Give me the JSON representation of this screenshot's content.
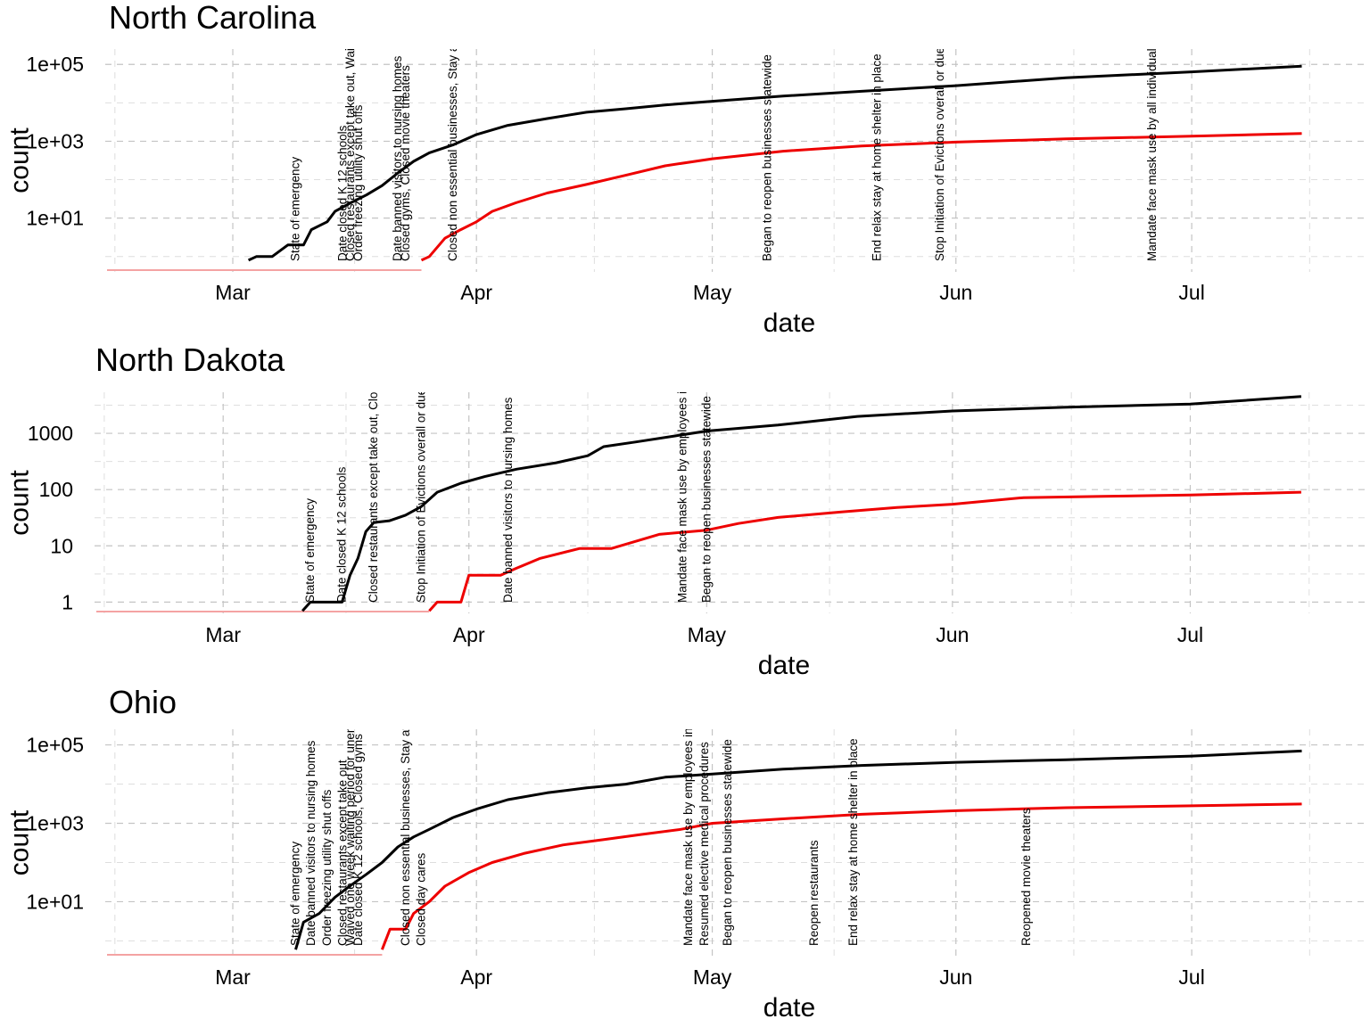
{
  "colors": {
    "cases": "#000000",
    "deaths": "#ee0000",
    "floor": "#f4a3a3",
    "grid": "#c4c4c4"
  },
  "chart_data": [
    {
      "type": "line",
      "title": "North Carolina",
      "xlabel": "date",
      "ylabel": "count",
      "y_scale": "log10",
      "xlim": [
        "2020-02-14",
        "2020-07-23"
      ],
      "ylim_log10": [
        -0.4,
        5.4
      ],
      "y_ticks": [
        {
          "value": 10,
          "label": "1e+01"
        },
        {
          "value": 1000,
          "label": "1e+03"
        },
        {
          "value": 100000,
          "label": "1e+05"
        }
      ],
      "x_ticks": [
        {
          "date": "2020-03-01",
          "label": "Mar"
        },
        {
          "date": "2020-04-01",
          "label": "Apr"
        },
        {
          "date": "2020-05-01",
          "label": "May"
        },
        {
          "date": "2020-06-01",
          "label": "Jun"
        },
        {
          "date": "2020-07-01",
          "label": "Jul"
        }
      ],
      "series": [
        {
          "key": "cases",
          "x": [
            "2020-03-03",
            "2020-03-04",
            "2020-03-06",
            "2020-03-08",
            "2020-03-10",
            "2020-03-11",
            "2020-03-13",
            "2020-03-14",
            "2020-03-16",
            "2020-03-18",
            "2020-03-20",
            "2020-03-22",
            "2020-03-24",
            "2020-03-26",
            "2020-03-29",
            "2020-04-01",
            "2020-04-05",
            "2020-04-10",
            "2020-04-15",
            "2020-04-20",
            "2020-04-25",
            "2020-05-01",
            "2020-05-10",
            "2020-05-20",
            "2020-06-01",
            "2020-06-15",
            "2020-07-01",
            "2020-07-15"
          ],
          "y": [
            0.8,
            1,
            1,
            2,
            2,
            5,
            8,
            15,
            25,
            40,
            70,
            150,
            300,
            500,
            800,
            1500,
            2600,
            3900,
            5700,
            7000,
            8800,
            11000,
            15000,
            20000,
            28000,
            45000,
            64000,
            90000
          ]
        },
        {
          "key": "deaths",
          "x": [
            "2020-03-25",
            "2020-03-26",
            "2020-03-28",
            "2020-03-30",
            "2020-04-01",
            "2020-04-03",
            "2020-04-06",
            "2020-04-10",
            "2020-04-15",
            "2020-04-20",
            "2020-04-25",
            "2020-05-01",
            "2020-05-10",
            "2020-05-20",
            "2020-06-01",
            "2020-06-15",
            "2020-07-01",
            "2020-07-15"
          ],
          "y": [
            0.8,
            1,
            3,
            5,
            8,
            15,
            25,
            45,
            75,
            130,
            230,
            350,
            550,
            750,
            950,
            1150,
            1350,
            1600
          ]
        }
      ],
      "floor_start": "2020-02-14",
      "floor_end_date": "2020-03-25",
      "annotations": [
        {
          "date": "2020-03-09",
          "text": "State of emergency"
        },
        {
          "date": "2020-03-15",
          "text": "Date closed K 12 schools"
        },
        {
          "date": "2020-03-16",
          "text": "Closed restaurants except take out, Waived one week waiting period for unemployment insurance"
        },
        {
          "date": "2020-03-17",
          "text": "Order freezing utility shut offs"
        },
        {
          "date": "2020-03-22",
          "text": "Date banned visitors to nursing homes"
        },
        {
          "date": "2020-03-23",
          "text": "Closed gyms, Closed movie theaters"
        },
        {
          "date": "2020-03-29",
          "text": "Closed non essential businesses, Stay at home/ shelter in place"
        },
        {
          "date": "2020-05-08",
          "text": "Began to reopen businesses statewide"
        },
        {
          "date": "2020-05-22",
          "text": "End relax stay at home shelter in place"
        },
        {
          "date": "2020-05-30",
          "text": "Stop Initiation of Evictions overall or due to COVID related issues"
        },
        {
          "date": "2020-06-26",
          "text": "Mandate face mask use by all individuals in public spaces"
        }
      ]
    },
    {
      "type": "line",
      "title": "North Dakota",
      "xlabel": "date",
      "ylabel": "count",
      "y_scale": "log10",
      "xlim": [
        "2020-02-14",
        "2020-07-23"
      ],
      "ylim_log10": [
        -0.2,
        3.73
      ],
      "y_ticks": [
        {
          "value": 1,
          "label": "1"
        },
        {
          "value": 10,
          "label": "10"
        },
        {
          "value": 100,
          "label": "100"
        },
        {
          "value": 1000,
          "label": "1000"
        }
      ],
      "x_ticks": [
        {
          "date": "2020-03-01",
          "label": "Mar"
        },
        {
          "date": "2020-04-01",
          "label": "Apr"
        },
        {
          "date": "2020-05-01",
          "label": "May"
        },
        {
          "date": "2020-06-01",
          "label": "Jun"
        },
        {
          "date": "2020-07-01",
          "label": "Jul"
        }
      ],
      "series": [
        {
          "key": "cases",
          "x": [
            "2020-03-11",
            "2020-03-12",
            "2020-03-16",
            "2020-03-17",
            "2020-03-18",
            "2020-03-19",
            "2020-03-20",
            "2020-03-22",
            "2020-03-24",
            "2020-03-26",
            "2020-03-28",
            "2020-03-31",
            "2020-04-03",
            "2020-04-07",
            "2020-04-12",
            "2020-04-16",
            "2020-04-18",
            "2020-04-22",
            "2020-04-27",
            "2020-05-01",
            "2020-05-10",
            "2020-05-20",
            "2020-06-01",
            "2020-06-15",
            "2020-07-01",
            "2020-07-15"
          ],
          "y": [
            0.7,
            1,
            1,
            3,
            6,
            18,
            26,
            28,
            35,
            50,
            90,
            130,
            170,
            230,
            300,
            400,
            580,
            700,
            900,
            1100,
            1400,
            2000,
            2500,
            2900,
            3300,
            4500
          ]
        },
        {
          "key": "deaths",
          "x": [
            "2020-03-27",
            "2020-03-28",
            "2020-03-31",
            "2020-04-01",
            "2020-04-05",
            "2020-04-07",
            "2020-04-10",
            "2020-04-15",
            "2020-04-19",
            "2020-04-25",
            "2020-05-01",
            "2020-05-05",
            "2020-05-10",
            "2020-05-18",
            "2020-05-25",
            "2020-06-01",
            "2020-06-10",
            "2020-06-20",
            "2020-07-01",
            "2020-07-15"
          ],
          "y": [
            0.7,
            1,
            1,
            3,
            3,
            4,
            6,
            9,
            9,
            16,
            19,
            25,
            32,
            40,
            48,
            55,
            72,
            76,
            80,
            90
          ]
        }
      ],
      "floor_start": "2020-02-14",
      "floor_end_date": "2020-03-27",
      "annotations": [
        {
          "date": "2020-03-12",
          "text": "State of emergency"
        },
        {
          "date": "2020-03-16",
          "text": "Date closed K 12 schools"
        },
        {
          "date": "2020-03-20",
          "text": "Closed restaurants except take out, Closed gyms"
        },
        {
          "date": "2020-03-26",
          "text": "Stop Initiation of Evictions overall or due to COVID related issues"
        },
        {
          "date": "2020-04-06",
          "text": "Date banned visitors to nursing homes"
        },
        {
          "date": "2020-04-28",
          "text": "Mandate face mask use by employees in public facing businesses"
        },
        {
          "date": "2020-05-01",
          "text": "Began to reopen businesses statewide"
        }
      ]
    },
    {
      "type": "line",
      "title": "Ohio",
      "xlabel": "date",
      "ylabel": "count",
      "y_scale": "log10",
      "xlim": [
        "2020-02-14",
        "2020-07-23"
      ],
      "ylim_log10": [
        -0.4,
        5.4
      ],
      "y_ticks": [
        {
          "value": 10,
          "label": "1e+01"
        },
        {
          "value": 1000,
          "label": "1e+03"
        },
        {
          "value": 100000,
          "label": "1e+05"
        }
      ],
      "x_ticks": [
        {
          "date": "2020-03-01",
          "label": "Mar"
        },
        {
          "date": "2020-04-01",
          "label": "Apr"
        },
        {
          "date": "2020-05-01",
          "label": "May"
        },
        {
          "date": "2020-06-01",
          "label": "Jun"
        },
        {
          "date": "2020-07-01",
          "label": "Jul"
        }
      ],
      "series": [
        {
          "key": "cases",
          "x": [
            "2020-03-09",
            "2020-03-10",
            "2020-03-12",
            "2020-03-14",
            "2020-03-16",
            "2020-03-18",
            "2020-03-20",
            "2020-03-22",
            "2020-03-24",
            "2020-03-26",
            "2020-03-29",
            "2020-04-01",
            "2020-04-05",
            "2020-04-10",
            "2020-04-15",
            "2020-04-20",
            "2020-04-25",
            "2020-05-01",
            "2020-05-10",
            "2020-05-20",
            "2020-06-01",
            "2020-06-15",
            "2020-07-01",
            "2020-07-15"
          ],
          "y": [
            0.6,
            3,
            5,
            13,
            26,
            50,
            100,
            250,
            450,
            700,
            1400,
            2300,
            4000,
            6000,
            8000,
            10000,
            15000,
            18000,
            24000,
            30000,
            36000,
            42000,
            52000,
            70000
          ]
        },
        {
          "key": "deaths",
          "x": [
            "2020-03-20",
            "2020-03-21",
            "2020-03-23",
            "2020-03-24",
            "2020-03-26",
            "2020-03-28",
            "2020-03-31",
            "2020-04-03",
            "2020-04-07",
            "2020-04-12",
            "2020-04-17",
            "2020-04-22",
            "2020-04-27",
            "2020-05-01",
            "2020-05-10",
            "2020-05-20",
            "2020-06-01",
            "2020-06-15",
            "2020-07-01",
            "2020-07-15"
          ],
          "y": [
            0.6,
            2,
            2,
            5,
            10,
            25,
            55,
            100,
            170,
            280,
            380,
            520,
            700,
            1000,
            1300,
            1700,
            2100,
            2500,
            2800,
            3100
          ]
        }
      ],
      "floor_start": "2020-02-14",
      "floor_end_date": "2020-03-20",
      "annotations": [
        {
          "date": "2020-03-09",
          "text": "State of emergency"
        },
        {
          "date": "2020-03-11",
          "text": "Date banned visitors to nursing homes"
        },
        {
          "date": "2020-03-13",
          "text": "Order freezing utility shut offs"
        },
        {
          "date": "2020-03-15",
          "text": "Closed restaurants except take out"
        },
        {
          "date": "2020-03-16",
          "text": "Waived one week waiting period for unemployment insurance"
        },
        {
          "date": "2020-03-17",
          "text": "Date closed K 12 schools, Closed gyms"
        },
        {
          "date": "2020-03-23",
          "text": "Closed non essential businesses, Stay at home/ shelter in place"
        },
        {
          "date": "2020-03-25",
          "text": "Closed day cares"
        },
        {
          "date": "2020-04-28",
          "text": "Mandate face mask use by employees in public facing businesses"
        },
        {
          "date": "2020-04-30",
          "text": "Resumed elective medical procedures"
        },
        {
          "date": "2020-05-03",
          "text": "Began to reopen businesses statewide"
        },
        {
          "date": "2020-05-14",
          "text": "Reopen restaurants"
        },
        {
          "date": "2020-05-19",
          "text": "End relax stay at home shelter in place"
        },
        {
          "date": "2020-06-10",
          "text": "Reopened movie theaters"
        }
      ]
    }
  ]
}
